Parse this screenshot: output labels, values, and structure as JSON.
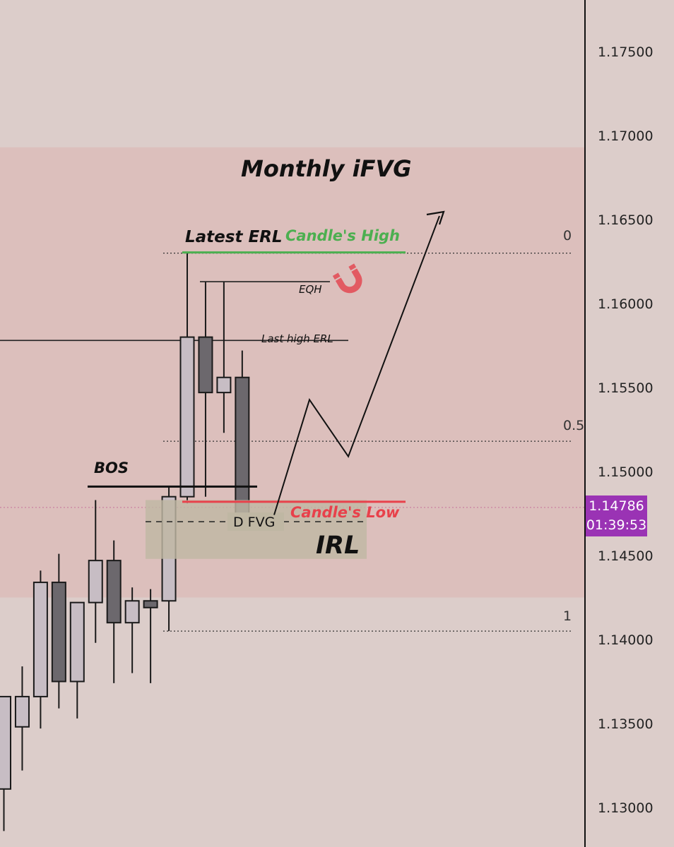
{
  "chart_data": {
    "type": "candlestick",
    "y_axis": {
      "side": "right",
      "ticks": [
        "1.17500",
        "1.17000",
        "1.16500",
        "1.16000",
        "1.15500",
        "1.15000",
        "1.14500",
        "1.14000",
        "1.13500",
        "1.13000"
      ],
      "range": [
        1.1275,
        1.1775
      ]
    },
    "current_price": {
      "price": "1.14786",
      "countdown": "01:39:53"
    },
    "candles": [
      {
        "o": 1.1311,
        "h": 1.1366,
        "l": 1.1286,
        "c": 1.1366
      },
      {
        "o": 1.1348,
        "h": 1.1384,
        "l": 1.1322,
        "c": 1.1366
      },
      {
        "o": 1.1366,
        "h": 1.1441,
        "l": 1.1347,
        "c": 1.1434
      },
      {
        "o": 1.1434,
        "h": 1.1451,
        "l": 1.1359,
        "c": 1.1375
      },
      {
        "o": 1.1375,
        "h": 1.142,
        "l": 1.1353,
        "c": 1.1422
      },
      {
        "o": 1.1422,
        "h": 1.1483,
        "l": 1.1398,
        "c": 1.1447
      },
      {
        "o": 1.1447,
        "h": 1.1459,
        "l": 1.1374,
        "c": 1.141
      },
      {
        "o": 1.141,
        "h": 1.1431,
        "l": 1.138,
        "c": 1.1423
      },
      {
        "o": 1.1423,
        "h": 1.143,
        "l": 1.1374,
        "c": 1.1419
      },
      {
        "o": 1.1423,
        "h": 1.1491,
        "l": 1.1405,
        "c": 1.1485
      },
      {
        "o": 1.1485,
        "h": 1.163,
        "l": 1.1481,
        "c": 1.158
      },
      {
        "o": 1.158,
        "h": 1.1613,
        "l": 1.1485,
        "c": 1.1547
      },
      {
        "o": 1.1547,
        "h": 1.1613,
        "l": 1.1523,
        "c": 1.1556
      },
      {
        "o": 1.1556,
        "h": 1.1572,
        "l": 1.147,
        "c": 1.1475
      }
    ],
    "fib_levels": [
      {
        "label": "0",
        "price": 1.163
      },
      {
        "label": "0.5",
        "price": 1.1518
      },
      {
        "label": "1",
        "price": 1.1405
      }
    ],
    "zones": [
      {
        "name": "Monthly iFVG",
        "top": 1.1693,
        "bottom": 1.1425
      },
      {
        "name": "D FVG",
        "top": 1.1483,
        "bottom": 1.1448
      }
    ],
    "annotations": {
      "monthly_ifvg": "Monthly iFVG",
      "latest_erl": "Latest ERL",
      "candle_high": "Candle's High",
      "eqh": "EQH",
      "last_high_erl": "Last high ERL",
      "bos": "BOS",
      "candle_low": "Candle's Low",
      "d_fvg": "D FVG",
      "irl": "IRL"
    },
    "levels": {
      "last_high_erl": 1.1578,
      "bos": 1.1491,
      "candle_high": 1.163,
      "candle_low": 1.1482,
      "eqh": 1.1613,
      "current": 1.14786
    },
    "projected_path": [
      [
        1.1475,
        1.1544,
        1.1514,
        1.1643
      ]
    ],
    "colors": {
      "background": "#dccdca",
      "zone_fill": "#dcbfbc",
      "bull_fill": "#c7bdc4",
      "bear_fill": "#6c686d",
      "candle_high_line": "#4caf50",
      "candle_low_line": "#e8414b",
      "price_tag": "#9a33b4",
      "magnet_icon": "#e25a62",
      "irl_fill": "#bfb7a3"
    }
  }
}
